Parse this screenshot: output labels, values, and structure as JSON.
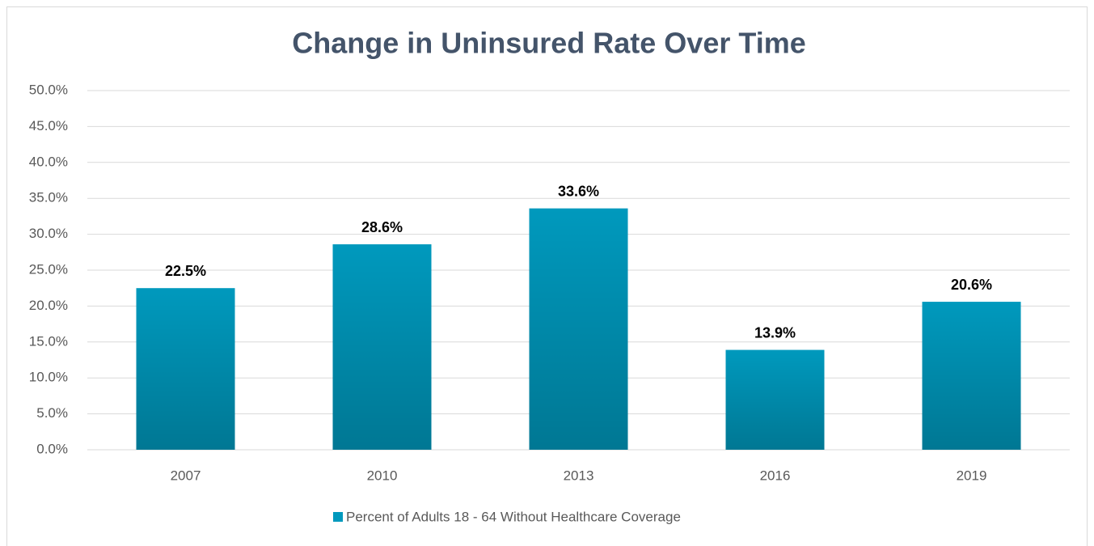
{
  "chart_data": {
    "type": "bar",
    "title": "Change in Uninsured Rate Over Time",
    "categories": [
      "2007",
      "2010",
      "2013",
      "2016",
      "2019"
    ],
    "series": [
      {
        "name": "Percent of Adults 18 - 64 Without Healthcare Coverage",
        "color": "#0099bd",
        "values": [
          22.5,
          28.6,
          33.6,
          13.9,
          20.6
        ],
        "value_labels": [
          "22.5%",
          "28.6%",
          "33.6%",
          "13.9%",
          "20.6%"
        ]
      }
    ],
    "ylim": [
      0,
      50
    ],
    "yticks": [
      {
        "value": 0,
        "label": "0.0%"
      },
      {
        "value": 5,
        "label": "5.0%"
      },
      {
        "value": 10,
        "label": "10.0%"
      },
      {
        "value": 15,
        "label": "15.0%"
      },
      {
        "value": 20,
        "label": "20.0%"
      },
      {
        "value": 25,
        "label": "25.0%"
      },
      {
        "value": 30,
        "label": "30.0%"
      },
      {
        "value": 35,
        "label": "35.0%"
      },
      {
        "value": 40,
        "label": "40.0%"
      },
      {
        "value": 45,
        "label": "45.0%"
      },
      {
        "value": 50,
        "label": "50.0%"
      }
    ],
    "grid": true,
    "legend": "bottom"
  }
}
